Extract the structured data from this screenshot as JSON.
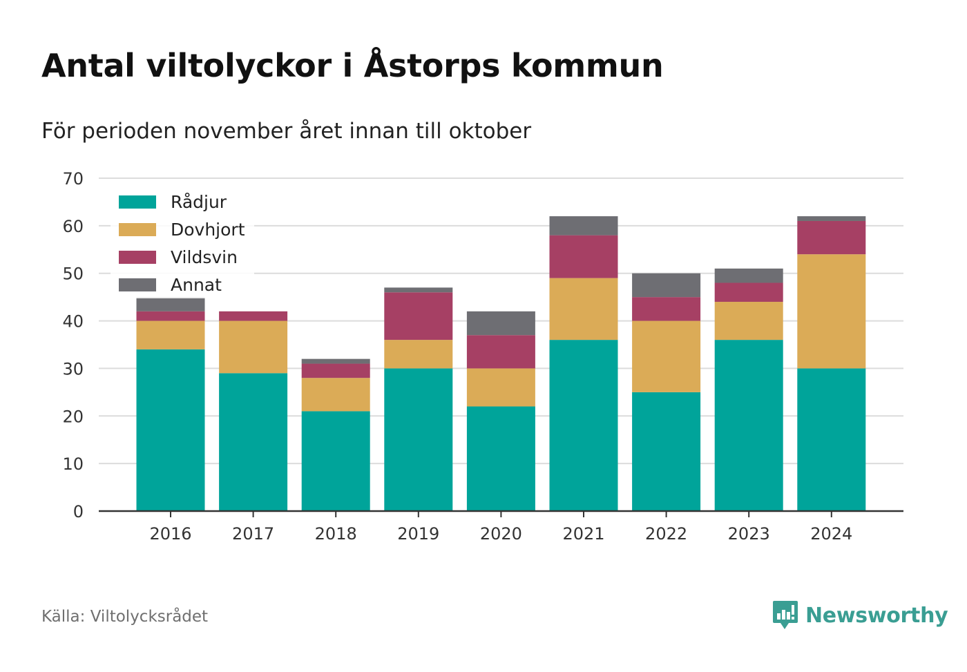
{
  "title": "Antal viltolyckor i Åstorps kommun",
  "subtitle": "För perioden november året innan till oktober",
  "source": "Källa: Viltolycksrådet",
  "brand": {
    "name": "Newsworthy",
    "color": "#3a9e93",
    "icon": "newsworthy-logo-icon"
  },
  "chart_data": {
    "type": "bar",
    "stacked": true,
    "categories": [
      "2016",
      "2017",
      "2018",
      "2019",
      "2020",
      "2021",
      "2022",
      "2023",
      "2024"
    ],
    "series": [
      {
        "name": "Rådjur",
        "color": "#00a49a",
        "values": [
          34,
          29,
          21,
          30,
          22,
          36,
          25,
          36,
          30
        ]
      },
      {
        "name": "Dovhjort",
        "color": "#dbab57",
        "values": [
          6,
          11,
          7,
          6,
          8,
          13,
          15,
          8,
          24
        ]
      },
      {
        "name": "Vildsvin",
        "color": "#a64064",
        "values": [
          2,
          2,
          3,
          10,
          7,
          9,
          5,
          4,
          7
        ]
      },
      {
        "name": "Annat",
        "color": "#6e6e73",
        "values": [
          3,
          0,
          1,
          1,
          5,
          4,
          5,
          3,
          1
        ]
      }
    ],
    "ylim": [
      0,
      70
    ],
    "yticks": [
      0,
      10,
      20,
      30,
      40,
      50,
      60,
      70
    ],
    "grid": true,
    "legend": "top-left"
  }
}
